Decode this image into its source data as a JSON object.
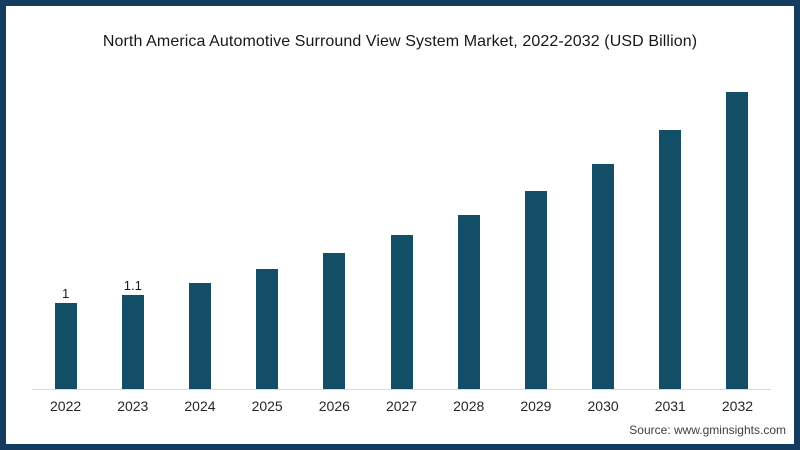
{
  "frame": {
    "border_color": "#143c5e",
    "background": "#ffffff"
  },
  "chart_data": {
    "type": "bar",
    "title": "North America Automotive Surround View System Market, 2022-2032 (USD Billion)",
    "categories": [
      "2022",
      "2023",
      "2024",
      "2025",
      "2026",
      "2027",
      "2028",
      "2029",
      "2030",
      "2031",
      "2032"
    ],
    "values": [
      1,
      1.1,
      1.24,
      1.4,
      1.59,
      1.8,
      2.03,
      2.31,
      2.62,
      3.02,
      3.46
    ],
    "data_labels": [
      "1",
      "1.1",
      "",
      "",
      "",
      "",
      "",
      "",
      "",
      "",
      ""
    ],
    "xlabel": "",
    "ylabel": "",
    "ylim": [
      0,
      3.6
    ],
    "grid": false,
    "legend": false,
    "y_axis_visible": false,
    "bar_color": "#124e66",
    "axis_line_color": "#d8d8d8",
    "source": "Source: www.gminsights.com"
  }
}
